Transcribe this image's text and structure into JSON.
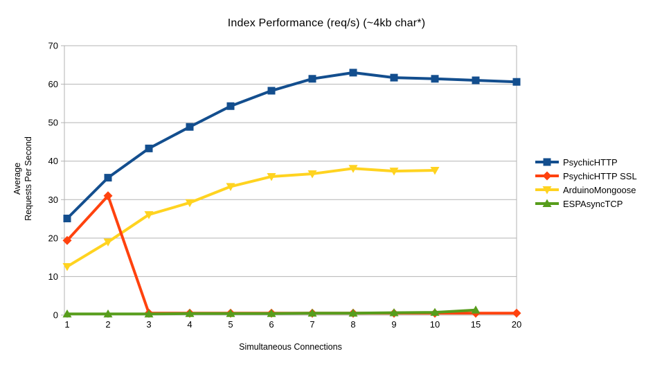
{
  "chart_data": {
    "type": "line",
    "title": "Index Performance (req/s) (~4kb char*)",
    "xlabel": "Simultaneous Connections",
    "ylabel": "Average Requests Per Second",
    "ylabel_lines": [
      "Average",
      "Requests Per Second"
    ],
    "categories": [
      "1",
      "2",
      "3",
      "4",
      "5",
      "6",
      "7",
      "8",
      "9",
      "10",
      "15",
      "20"
    ],
    "ylim": [
      0,
      70
    ],
    "y_ticks": [
      0,
      10,
      20,
      30,
      40,
      50,
      60,
      70
    ],
    "grid": true,
    "legend_position": "right",
    "colors": {
      "grid": "#b3b3b3",
      "axis": "#b3b3b3",
      "text": "#000000"
    },
    "series": [
      {
        "name": "PsychicHTTP",
        "color": "#134e8e",
        "marker": "square",
        "values": [
          25.1,
          35.7,
          43.3,
          48.9,
          54.3,
          58.3,
          61.4,
          63.0,
          61.7,
          61.4,
          61.0,
          60.6
        ]
      },
      {
        "name": "PsychicHTTP SSL",
        "color": "#ff420e",
        "marker": "diamond",
        "values": [
          19.4,
          31.0,
          0.5,
          0.5,
          0.5,
          0.5,
          0.5,
          0.5,
          0.5,
          0.5,
          0.5,
          0.5
        ]
      },
      {
        "name": "ArduinoMongoose",
        "color": "#ffd320",
        "marker": "triangle-down",
        "values": [
          12.6,
          19.0,
          26.1,
          29.2,
          33.4,
          36.0,
          36.7,
          38.1,
          37.4,
          37.6,
          null,
          null
        ]
      },
      {
        "name": "ESPAsyncTCP",
        "color": "#579d1c",
        "marker": "triangle-up",
        "values": [
          0.3,
          0.3,
          0.3,
          0.4,
          0.4,
          0.4,
          0.5,
          0.5,
          0.6,
          0.7,
          1.3,
          null
        ]
      }
    ]
  }
}
